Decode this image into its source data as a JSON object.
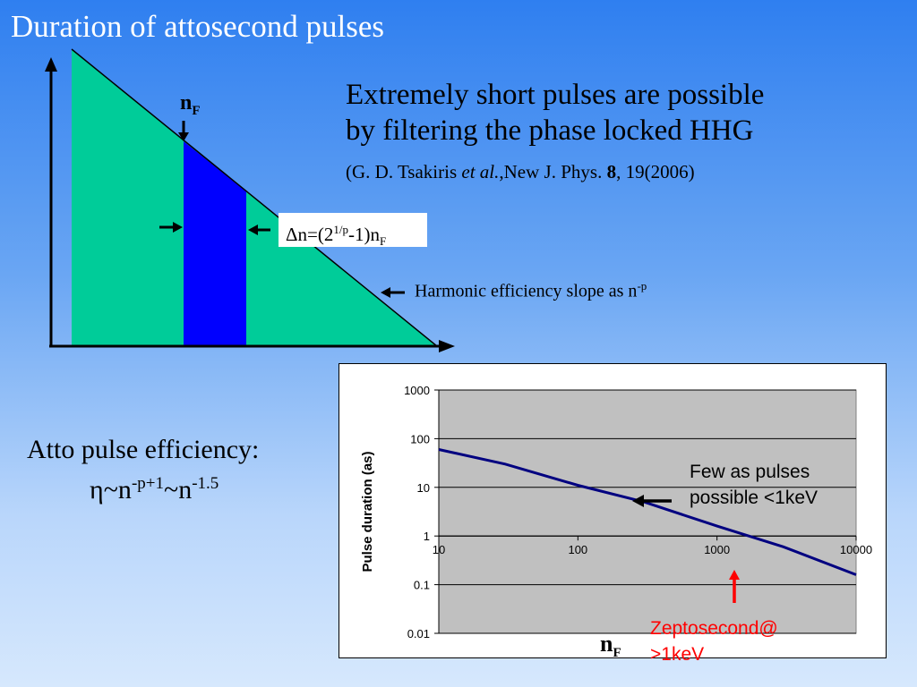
{
  "slide": {
    "title": "Duration of attosecond pulses",
    "background_colors": [
      "#2f7ff0",
      "#d6e8fd"
    ]
  },
  "diagram": {
    "nf_label": "n",
    "nf_sub": "F",
    "delta_prefix": "Δn=(2",
    "delta_sup": "1/p",
    "delta_mid": "-1)n",
    "delta_sub": "F",
    "slope_text": "Harmonic efficiency slope as n",
    "slope_sup": "-p",
    "colors": {
      "triangle": "#00cc99",
      "filter_band": "#0000ff"
    }
  },
  "text": {
    "line1": "Extremely short pulses are possible",
    "line2": "by filtering the phase locked HHG",
    "citation_prefix": "(G. D. Tsakiris ",
    "citation_italic": "et al.",
    "citation_mid": ",New J. Phys. ",
    "citation_bold": "8",
    "citation_suffix": ", 19(2006)"
  },
  "efficiency": {
    "title": "Atto pulse efficiency:",
    "eta": "η",
    "tilde_n": "~n",
    "exp1": "-p+1",
    "tilde_n2": "~n",
    "exp2": "-1.5"
  },
  "annotations": {
    "few_line1": "Few as pulses",
    "few_line2": "possible <1keV",
    "zepto_line1": "Zeptosecond@",
    "zepto_line2": ">1keV",
    "nf_label": "n",
    "nf_sub": "F",
    "zepto_color": "#ff0000"
  },
  "chart_data": {
    "type": "line",
    "xlabel": "",
    "ylabel": "Pulse duration (as)",
    "xscale": "log",
    "yscale": "log",
    "xlim": [
      10,
      10000
    ],
    "ylim": [
      0.01,
      1000
    ],
    "x_ticks": [
      "10",
      "100",
      "1000",
      "10000"
    ],
    "y_ticks": [
      "1000",
      "100",
      "10",
      "1",
      "0.1",
      "0.01"
    ],
    "grid": true,
    "plot_background": "#c0c0c0",
    "line_color": "#000080",
    "series": [
      {
        "x": [
          10,
          30,
          100,
          300,
          1000,
          3000,
          10000
        ],
        "y": [
          60,
          30,
          11,
          5,
          1.6,
          0.6,
          0.16
        ]
      }
    ]
  }
}
